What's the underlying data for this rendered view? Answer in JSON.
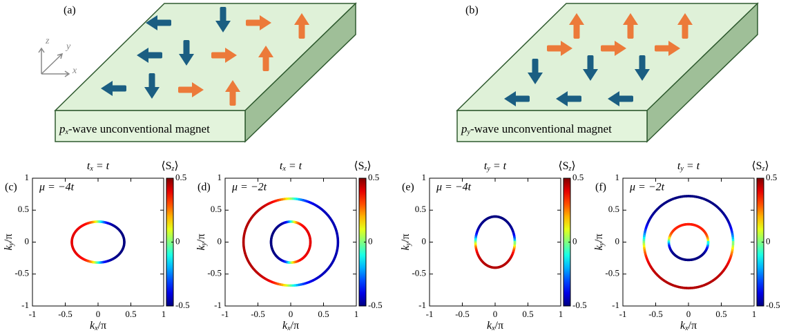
{
  "panels": [
    {
      "label": "(a)",
      "caption": [
        "p",
        "x",
        "-wave unconventional magnet"
      ],
      "axes": [
        "z",
        "y",
        "x"
      ]
    },
    {
      "label": "(b)",
      "caption": [
        "p",
        "y",
        "-wave unconventional magnet"
      ]
    }
  ],
  "chart_data": [
    {
      "type": "contour",
      "label": "(c)",
      "title": [
        "t",
        "x",
        " = t"
      ],
      "annotation": "μ = −4t",
      "xlabel": [
        "k",
        "x",
        "/π"
      ],
      "ylabel": [
        "k",
        "y",
        "/π"
      ],
      "xlim": [
        -1,
        1
      ],
      "ylim": [
        -1,
        1
      ],
      "xticks": [
        -1,
        -0.5,
        0,
        0.5,
        1
      ],
      "yticks": [
        -1,
        -0.5,
        0,
        0.5,
        1
      ],
      "colorbar": {
        "label": [
          "⟨S",
          "z",
          "⟩"
        ],
        "lim": [
          -0.5,
          0.5
        ],
        "ticks": [
          0.5,
          0,
          -0.5
        ]
      },
      "contours": [
        {
          "kx": [
            -0.4,
            0.4
          ],
          "ky": [
            -0.32,
            0.32
          ],
          "axis": "x",
          "sz": [
            0.4,
            -0.5
          ]
        }
      ]
    },
    {
      "type": "contour",
      "label": "(d)",
      "title": [
        "t",
        "x",
        " = t"
      ],
      "annotation": "μ = −2t",
      "xlabel": [
        "k",
        "x",
        "/π"
      ],
      "ylabel": [
        "k",
        "y",
        "/π"
      ],
      "xlim": [
        -1,
        1
      ],
      "ylim": [
        -1,
        1
      ],
      "xticks": [
        -1,
        -0.5,
        0,
        0.5,
        1
      ],
      "yticks": [
        -1,
        -0.5,
        0,
        0.5,
        1
      ],
      "colorbar": {
        "label": [
          "⟨S",
          "z",
          "⟩"
        ],
        "lim": [
          -0.5,
          0.5
        ],
        "ticks": [
          0.5,
          0,
          -0.5
        ]
      },
      "contours": [
        {
          "kx": [
            -0.72,
            0.72
          ],
          "ky": [
            -0.68,
            0.68
          ],
          "axis": "x",
          "sz": [
            0.45,
            -0.45
          ]
        },
        {
          "kx": [
            -0.3,
            0.3
          ],
          "ky": [
            -0.32,
            0.32
          ],
          "axis": "x",
          "sz": [
            -0.5,
            0.4
          ]
        }
      ]
    },
    {
      "type": "contour",
      "label": "(e)",
      "title": [
        "t",
        "y",
        " = t"
      ],
      "annotation": "μ = −4t",
      "xlabel": [
        "k",
        "x",
        "/π"
      ],
      "ylabel": [
        "k",
        "y",
        "/π"
      ],
      "xlim": [
        -1,
        1
      ],
      "ylim": [
        -1,
        1
      ],
      "xticks": [
        -1,
        -0.5,
        0,
        0.5,
        1
      ],
      "yticks": [
        -1,
        -0.5,
        0,
        0.5,
        1
      ],
      "colorbar": {
        "label": [
          "⟨S",
          "z",
          "⟩"
        ],
        "lim": [
          -0.5,
          0.5
        ],
        "ticks": [
          0.5,
          0,
          -0.5
        ]
      },
      "contours": [
        {
          "kx": [
            -0.3,
            0.3
          ],
          "ky": [
            -0.4,
            0.4
          ],
          "axis": "y",
          "sz": [
            0.45,
            -0.5
          ]
        }
      ]
    },
    {
      "type": "contour",
      "label": "(f)",
      "title": [
        "t",
        "y",
        " = t"
      ],
      "annotation": "μ = −2t",
      "xlabel": [
        "k",
        "x",
        "/π"
      ],
      "ylabel": [
        "k",
        "y",
        "/π"
      ],
      "xlim": [
        -1,
        1
      ],
      "ylim": [
        -1,
        1
      ],
      "xticks": [
        -1,
        -0.5,
        0,
        0.5,
        1
      ],
      "yticks": [
        -1,
        -0.5,
        0,
        0.5,
        1
      ],
      "colorbar": {
        "label": [
          "⟨S",
          "z",
          "⟩"
        ],
        "lim": [
          -0.5,
          0.5
        ],
        "ticks": [
          0.5,
          0,
          -0.5
        ]
      },
      "contours": [
        {
          "kx": [
            -0.68,
            0.68
          ],
          "ky": [
            -0.72,
            0.72
          ],
          "axis": "y",
          "sz": [
            0.45,
            -0.5
          ]
        },
        {
          "kx": [
            -0.3,
            0.3
          ],
          "ky": [
            -0.28,
            0.28
          ],
          "axis": "y",
          "sz": [
            -0.5,
            0.35
          ]
        }
      ]
    }
  ]
}
